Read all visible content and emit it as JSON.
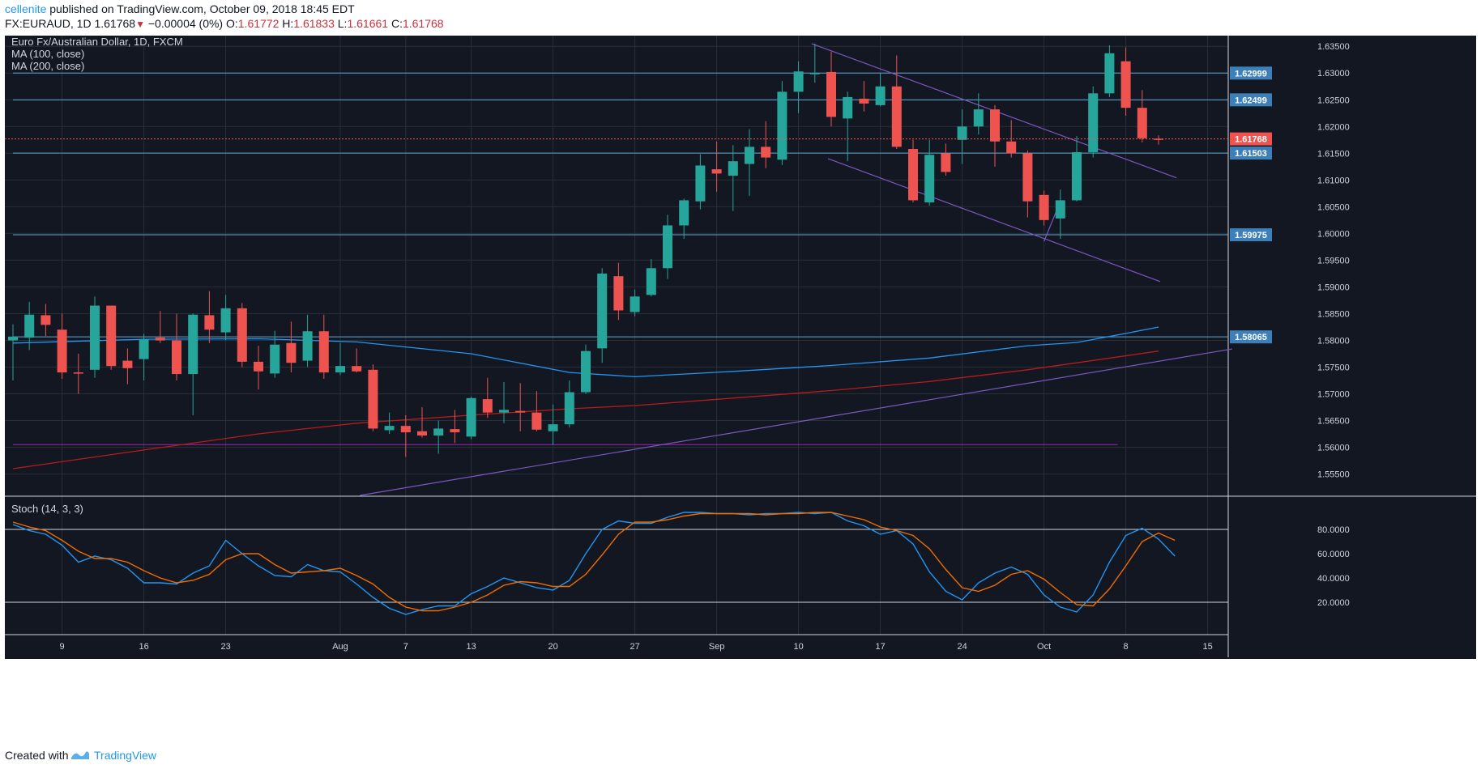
{
  "header": {
    "author": "cellenite",
    "published_text": "published on TradingView.com, October 09, 2018 18:45 EDT",
    "symbol": "FX:EURAUD, 1D",
    "last": "1.61768",
    "change": "−0.00004 (0%)",
    "open_label": "O:",
    "open": "1.61772",
    "high_label": "H:",
    "high": "1.61833",
    "low_label": "L:",
    "low": "1.61661",
    "close_label": "C:",
    "close": "1.61768"
  },
  "legend": {
    "title": "Euro Fx/Australian Dollar, 1D, FXCM",
    "ma100": "MA (100, close)",
    "ma200": "MA (200, close)",
    "stoch": "Stoch (14, 3, 3)"
  },
  "footer": {
    "created_with": "Created with",
    "brand": "TradingView"
  },
  "colors": {
    "background": "#131722",
    "grid": "#2a2e39",
    "up": "#26a69a",
    "down": "#ef5350",
    "ma100": "#2196f3",
    "ma200": "#b71c1c",
    "trendline": "#7e57c2",
    "hline": "#5fa8d3",
    "stoch_k": "#2196f3",
    "stoch_d": "#ef6c00"
  },
  "chart_data": {
    "type": "candlestick",
    "symbol": "FX:EURAUD",
    "timeframe": "1D",
    "ylim": [
      1.551,
      1.637
    ],
    "price_ticks": [
      "1.63500",
      "1.63000",
      "1.62500",
      "1.62000",
      "1.61500",
      "1.61000",
      "1.60500",
      "1.60000",
      "1.59500",
      "1.59000",
      "1.58500",
      "1.58000",
      "1.57500",
      "1.57000",
      "1.56500",
      "1.56000",
      "1.55500"
    ],
    "x_labels": [
      {
        "i": 3,
        "label": "9"
      },
      {
        "i": 8,
        "label": "16"
      },
      {
        "i": 13,
        "label": "23"
      },
      {
        "i": 20,
        "label": "Aug"
      },
      {
        "i": 24,
        "label": "7"
      },
      {
        "i": 28,
        "label": "13"
      },
      {
        "i": 33,
        "label": "20"
      },
      {
        "i": 38,
        "label": "27"
      },
      {
        "i": 43,
        "label": "Sep"
      },
      {
        "i": 48,
        "label": "10"
      },
      {
        "i": 53,
        "label": "17"
      },
      {
        "i": 58,
        "label": "24"
      },
      {
        "i": 63,
        "label": "Oct"
      },
      {
        "i": 68,
        "label": "8"
      },
      {
        "i": 73,
        "label": "15"
      }
    ],
    "candles": [
      {
        "o": 1.58,
        "h": 1.583,
        "l": 1.5725,
        "c": 1.5807
      },
      {
        "o": 1.5805,
        "h": 1.5872,
        "l": 1.5782,
        "c": 1.5848
      },
      {
        "o": 1.5847,
        "h": 1.5868,
        "l": 1.5808,
        "c": 1.5829
      },
      {
        "o": 1.582,
        "h": 1.585,
        "l": 1.5728,
        "c": 1.574
      },
      {
        "o": 1.574,
        "h": 1.5775,
        "l": 1.57,
        "c": 1.5738
      },
      {
        "o": 1.5745,
        "h": 1.5882,
        "l": 1.573,
        "c": 1.5865
      },
      {
        "o": 1.5865,
        "h": 1.586,
        "l": 1.5745,
        "c": 1.5752
      },
      {
        "o": 1.5762,
        "h": 1.5785,
        "l": 1.5718,
        "c": 1.5748
      },
      {
        "o": 1.5765,
        "h": 1.5812,
        "l": 1.5725,
        "c": 1.5802
      },
      {
        "o": 1.5805,
        "h": 1.5855,
        "l": 1.5795,
        "c": 1.58
      },
      {
        "o": 1.58,
        "h": 1.585,
        "l": 1.5725,
        "c": 1.5737
      },
      {
        "o": 1.5737,
        "h": 1.585,
        "l": 1.566,
        "c": 1.5848
      },
      {
        "o": 1.5847,
        "h": 1.5892,
        "l": 1.5795,
        "c": 1.582
      },
      {
        "o": 1.5815,
        "h": 1.5885,
        "l": 1.58,
        "c": 1.586
      },
      {
        "o": 1.586,
        "h": 1.587,
        "l": 1.575,
        "c": 1.576
      },
      {
        "o": 1.576,
        "h": 1.579,
        "l": 1.5708,
        "c": 1.5742
      },
      {
        "o": 1.5738,
        "h": 1.5818,
        "l": 1.573,
        "c": 1.5792
      },
      {
        "o": 1.5795,
        "h": 1.5835,
        "l": 1.574,
        "c": 1.5758
      },
      {
        "o": 1.5762,
        "h": 1.5848,
        "l": 1.575,
        "c": 1.5817
      },
      {
        "o": 1.5817,
        "h": 1.5848,
        "l": 1.5728,
        "c": 1.574
      },
      {
        "o": 1.574,
        "h": 1.5795,
        "l": 1.5735,
        "c": 1.5752
      },
      {
        "o": 1.5752,
        "h": 1.5785,
        "l": 1.574,
        "c": 1.5742
      },
      {
        "o": 1.5745,
        "h": 1.5755,
        "l": 1.563,
        "c": 1.5635
      },
      {
        "o": 1.5632,
        "h": 1.5665,
        "l": 1.5625,
        "c": 1.564
      },
      {
        "o": 1.564,
        "h": 1.566,
        "l": 1.5582,
        "c": 1.5628
      },
      {
        "o": 1.563,
        "h": 1.5675,
        "l": 1.5618,
        "c": 1.5622
      },
      {
        "o": 1.5622,
        "h": 1.565,
        "l": 1.5588,
        "c": 1.5635
      },
      {
        "o": 1.5634,
        "h": 1.567,
        "l": 1.5608,
        "c": 1.5628
      },
      {
        "o": 1.562,
        "h": 1.5695,
        "l": 1.5615,
        "c": 1.5692
      },
      {
        "o": 1.569,
        "h": 1.573,
        "l": 1.5655,
        "c": 1.5665
      },
      {
        "o": 1.5665,
        "h": 1.5722,
        "l": 1.5645,
        "c": 1.567
      },
      {
        "o": 1.5668,
        "h": 1.572,
        "l": 1.563,
        "c": 1.5665
      },
      {
        "o": 1.5665,
        "h": 1.5705,
        "l": 1.563,
        "c": 1.5633
      },
      {
        "o": 1.563,
        "h": 1.568,
        "l": 1.5605,
        "c": 1.5643
      },
      {
        "o": 1.5643,
        "h": 1.5725,
        "l": 1.5637,
        "c": 1.5703
      },
      {
        "o": 1.5703,
        "h": 1.5792,
        "l": 1.57,
        "c": 1.578
      },
      {
        "o": 1.5785,
        "h": 1.5935,
        "l": 1.5758,
        "c": 1.5925
      },
      {
        "o": 1.592,
        "h": 1.5945,
        "l": 1.5838,
        "c": 1.5856
      },
      {
        "o": 1.5853,
        "h": 1.5895,
        "l": 1.5845,
        "c": 1.5882
      },
      {
        "o": 1.5885,
        "h": 1.5952,
        "l": 1.5882,
        "c": 1.5935
      },
      {
        "o": 1.5935,
        "h": 1.6035,
        "l": 1.5915,
        "c": 1.6015
      },
      {
        "o": 1.6015,
        "h": 1.6065,
        "l": 1.599,
        "c": 1.6062
      },
      {
        "o": 1.606,
        "h": 1.6148,
        "l": 1.6045,
        "c": 1.6127
      },
      {
        "o": 1.612,
        "h": 1.6172,
        "l": 1.6078,
        "c": 1.6112
      },
      {
        "o": 1.6108,
        "h": 1.6165,
        "l": 1.6042,
        "c": 1.6135
      },
      {
        "o": 1.613,
        "h": 1.6195,
        "l": 1.607,
        "c": 1.6162
      },
      {
        "o": 1.6162,
        "h": 1.621,
        "l": 1.6122,
        "c": 1.6142
      },
      {
        "o": 1.6138,
        "h": 1.6285,
        "l": 1.6128,
        "c": 1.6265
      },
      {
        "o": 1.6265,
        "h": 1.6322,
        "l": 1.6225,
        "c": 1.6303
      },
      {
        "o": 1.6298,
        "h": 1.6355,
        "l": 1.6282,
        "c": 1.63
      },
      {
        "o": 1.6302,
        "h": 1.634,
        "l": 1.62,
        "c": 1.6218
      },
      {
        "o": 1.6215,
        "h": 1.6265,
        "l": 1.6135,
        "c": 1.6255
      },
      {
        "o": 1.6252,
        "h": 1.6285,
        "l": 1.6228,
        "c": 1.6243
      },
      {
        "o": 1.624,
        "h": 1.63,
        "l": 1.6238,
        "c": 1.6275
      },
      {
        "o": 1.6275,
        "h": 1.6333,
        "l": 1.6158,
        "c": 1.6162
      },
      {
        "o": 1.6158,
        "h": 1.6175,
        "l": 1.6058,
        "c": 1.6062
      },
      {
        "o": 1.6058,
        "h": 1.6175,
        "l": 1.6052,
        "c": 1.6147
      },
      {
        "o": 1.615,
        "h": 1.6168,
        "l": 1.6108,
        "c": 1.6115
      },
      {
        "o": 1.6175,
        "h": 1.6232,
        "l": 1.613,
        "c": 1.62
      },
      {
        "o": 1.62,
        "h": 1.6262,
        "l": 1.6185,
        "c": 1.6232
      },
      {
        "o": 1.6232,
        "h": 1.624,
        "l": 1.6125,
        "c": 1.6172
      },
      {
        "o": 1.6172,
        "h": 1.6212,
        "l": 1.6142,
        "c": 1.615
      },
      {
        "o": 1.615,
        "h": 1.6155,
        "l": 1.603,
        "c": 1.606
      },
      {
        "o": 1.6072,
        "h": 1.608,
        "l": 1.6015,
        "c": 1.6025
      },
      {
        "o": 1.6028,
        "h": 1.6082,
        "l": 1.599,
        "c": 1.6062
      },
      {
        "o": 1.6062,
        "h": 1.6182,
        "l": 1.606,
        "c": 1.6152
      },
      {
        "o": 1.6152,
        "h": 1.6275,
        "l": 1.6142,
        "c": 1.6262
      },
      {
        "o": 1.6262,
        "h": 1.6352,
        "l": 1.6255,
        "c": 1.6337
      },
      {
        "o": 1.6322,
        "h": 1.6348,
        "l": 1.622,
        "c": 1.6235
      },
      {
        "o": 1.6235,
        "h": 1.6268,
        "l": 1.617,
        "c": 1.6178
      },
      {
        "o": 1.61772,
        "h": 1.61833,
        "l": 1.61661,
        "c": 1.61768
      }
    ],
    "ma100": [
      [
        0,
        1.5795
      ],
      [
        8,
        1.5802
      ],
      [
        15,
        1.5803
      ],
      [
        21,
        1.5797
      ],
      [
        28,
        1.5775
      ],
      [
        34,
        1.574
      ],
      [
        38,
        1.5732
      ],
      [
        44,
        1.5742
      ],
      [
        50,
        1.5753
      ],
      [
        56,
        1.5767
      ],
      [
        62,
        1.579
      ],
      [
        65,
        1.5796
      ],
      [
        68,
        1.5813
      ],
      [
        70,
        1.5825
      ]
    ],
    "ma200": [
      [
        0,
        1.556
      ],
      [
        8,
        1.5595
      ],
      [
        15,
        1.5625
      ],
      [
        21,
        1.5645
      ],
      [
        28,
        1.566
      ],
      [
        34,
        1.5672
      ],
      [
        38,
        1.5678
      ],
      [
        44,
        1.5692
      ],
      [
        50,
        1.5706
      ],
      [
        56,
        1.5723
      ],
      [
        62,
        1.5745
      ],
      [
        65,
        1.5758
      ],
      [
        70,
        1.578
      ]
    ],
    "horizontal_levels": [
      {
        "value": 1.62999,
        "label": "1.62999",
        "x_start": 0
      },
      {
        "value": 1.62499,
        "label": "1.62499",
        "x_start": 0
      },
      {
        "value": 1.61503,
        "label": "1.61503",
        "x_start": 0
      },
      {
        "value": 1.59975,
        "label": "1.59975",
        "x_start": 0
      },
      {
        "value": 1.58065,
        "label": "1.58065",
        "x_start": 0
      },
      {
        "value": 1.5605,
        "label": "",
        "x_start": 0,
        "x_end": 67.5,
        "color": "#9c27b0"
      }
    ],
    "trendlines": [
      {
        "from": [
          48.8,
          1.6355
        ],
        "to": [
          71.1,
          1.6104
        ]
      },
      {
        "from": [
          49.8,
          1.614
        ],
        "to": [
          70.1,
          1.591
        ]
      },
      {
        "from": [
          21.2,
          1.551
        ],
        "to": [
          74.5,
          1.5784
        ]
      },
      {
        "from": [
          63.0,
          1.5985
        ],
        "to": [
          64.0,
          1.606
        ]
      }
    ],
    "last_price": {
      "value": 1.61768,
      "label": "1.61768"
    },
    "stochastic": {
      "title": "Stoch (14, 3, 3)",
      "ylim": [
        0,
        100
      ],
      "ticks": [
        "80.0000",
        "60.0000",
        "40.0000",
        "20.0000"
      ],
      "bands": [
        20,
        80
      ],
      "k": [
        [
          0,
          84
        ],
        [
          1,
          79
        ],
        [
          2,
          76
        ],
        [
          3,
          67
        ],
        [
          4,
          53
        ],
        [
          5,
          58
        ],
        [
          6,
          55
        ],
        [
          7,
          48
        ],
        [
          8,
          36
        ],
        [
          9,
          36
        ],
        [
          10,
          35
        ],
        [
          11,
          44
        ],
        [
          12,
          50
        ],
        [
          13,
          71
        ],
        [
          14,
          60
        ],
        [
          15,
          50
        ],
        [
          16,
          42
        ],
        [
          17,
          41
        ],
        [
          18,
          51
        ],
        [
          19,
          46
        ],
        [
          20,
          45
        ],
        [
          21,
          35
        ],
        [
          22,
          24
        ],
        [
          23,
          15
        ],
        [
          24,
          10
        ],
        [
          25,
          14
        ],
        [
          26,
          17
        ],
        [
          27,
          17
        ],
        [
          28,
          27
        ],
        [
          29,
          33
        ],
        [
          30,
          40
        ],
        [
          31,
          36
        ],
        [
          32,
          32
        ],
        [
          33,
          30
        ],
        [
          34,
          38
        ],
        [
          35,
          60
        ],
        [
          36,
          80
        ],
        [
          37,
          87
        ],
        [
          38,
          85
        ],
        [
          39,
          85
        ],
        [
          40,
          90
        ],
        [
          41,
          94
        ],
        [
          42,
          94
        ],
        [
          43,
          93
        ],
        [
          44,
          93
        ],
        [
          45,
          92
        ],
        [
          46,
          93
        ],
        [
          47,
          93
        ],
        [
          48,
          94
        ],
        [
          49,
          93
        ],
        [
          50,
          94
        ],
        [
          51,
          87
        ],
        [
          52,
          83
        ],
        [
          53,
          76
        ],
        [
          54,
          79
        ],
        [
          55,
          68
        ],
        [
          56,
          45
        ],
        [
          57,
          29
        ],
        [
          58,
          22
        ],
        [
          59,
          36
        ],
        [
          60,
          44
        ],
        [
          61,
          49
        ],
        [
          62,
          43
        ],
        [
          63,
          26
        ],
        [
          64,
          16
        ],
        [
          65,
          12
        ],
        [
          66,
          26
        ],
        [
          67,
          53
        ],
        [
          68,
          75
        ],
        [
          69,
          81
        ],
        [
          70,
          72
        ],
        [
          71,
          58
        ]
      ],
      "d": [
        [
          0,
          86
        ],
        [
          1,
          82
        ],
        [
          2,
          79
        ],
        [
          3,
          71
        ],
        [
          4,
          62
        ],
        [
          5,
          56
        ],
        [
          6,
          56
        ],
        [
          7,
          53
        ],
        [
          8,
          46
        ],
        [
          9,
          40
        ],
        [
          10,
          36
        ],
        [
          11,
          38
        ],
        [
          12,
          43
        ],
        [
          13,
          55
        ],
        [
          14,
          60
        ],
        [
          15,
          60
        ],
        [
          16,
          51
        ],
        [
          17,
          44
        ],
        [
          18,
          45
        ],
        [
          19,
          46
        ],
        [
          20,
          48
        ],
        [
          21,
          42
        ],
        [
          22,
          35
        ],
        [
          23,
          24
        ],
        [
          24,
          16
        ],
        [
          25,
          13
        ],
        [
          26,
          13
        ],
        [
          27,
          16
        ],
        [
          28,
          20
        ],
        [
          29,
          26
        ],
        [
          30,
          34
        ],
        [
          31,
          37
        ],
        [
          32,
          36
        ],
        [
          33,
          33
        ],
        [
          34,
          33
        ],
        [
          35,
          43
        ],
        [
          36,
          59
        ],
        [
          37,
          76
        ],
        [
          38,
          86
        ],
        [
          39,
          86
        ],
        [
          40,
          88
        ],
        [
          41,
          91
        ],
        [
          42,
          93
        ],
        [
          43,
          93
        ],
        [
          44,
          93
        ],
        [
          45,
          93
        ],
        [
          46,
          92
        ],
        [
          47,
          93
        ],
        [
          48,
          93
        ],
        [
          49,
          94
        ],
        [
          50,
          94
        ],
        [
          51,
          91
        ],
        [
          52,
          88
        ],
        [
          53,
          82
        ],
        [
          54,
          79
        ],
        [
          55,
          75
        ],
        [
          56,
          64
        ],
        [
          57,
          47
        ],
        [
          58,
          32
        ],
        [
          59,
          29
        ],
        [
          60,
          34
        ],
        [
          61,
          43
        ],
        [
          62,
          46
        ],
        [
          63,
          39
        ],
        [
          64,
          28
        ],
        [
          65,
          18
        ],
        [
          66,
          17
        ],
        [
          67,
          31
        ],
        [
          68,
          50
        ],
        [
          69,
          70
        ],
        [
          70,
          77
        ],
        [
          71,
          71
        ]
      ]
    }
  }
}
